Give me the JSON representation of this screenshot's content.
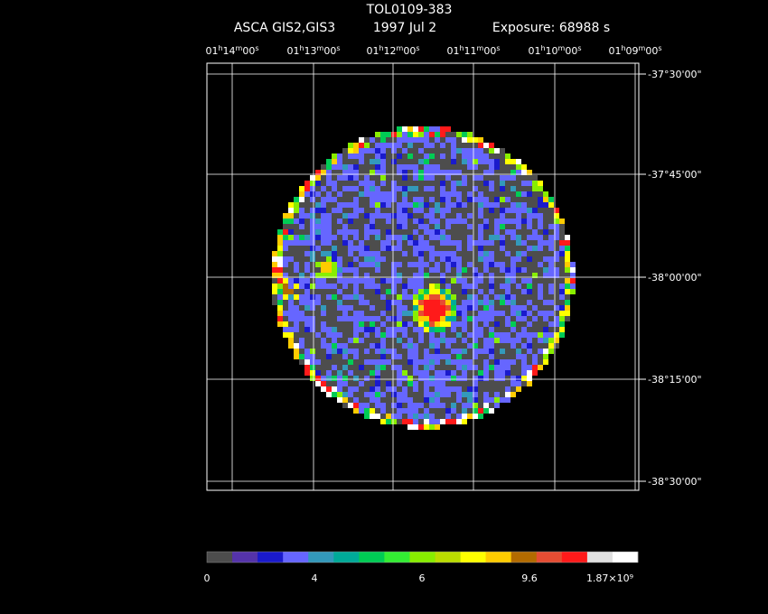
{
  "header": {
    "title": "TOL0109-383",
    "instrument": "ASCA GIS2,GIS3",
    "date": "1997 Jul  2",
    "exposure": "Exposure: 68988 s"
  },
  "ra_labels": [
    {
      "hours": "01",
      "h": "h",
      "minutes": "14",
      "m": "m",
      "seconds": "00",
      "s": "s"
    },
    {
      "hours": "01",
      "h": "h",
      "minutes": "13",
      "m": "m",
      "seconds": "00",
      "s": "s"
    },
    {
      "hours": "01",
      "h": "h",
      "minutes": "12",
      "m": "m",
      "seconds": "00",
      "s": "s"
    },
    {
      "hours": "01",
      "h": "h",
      "minutes": "11",
      "m": "m",
      "seconds": "00",
      "s": "s"
    },
    {
      "hours": "01",
      "h": "h",
      "minutes": "10",
      "m": "m",
      "seconds": "00",
      "s": "s"
    },
    {
      "hours": "01",
      "h": "h",
      "minutes": "09",
      "m": "m",
      "seconds": "00",
      "s": "s"
    }
  ],
  "dec_labels": [
    "-37°30'00\"",
    "-37°45'00\"",
    "-38°00'00\"",
    "-38°15'00\"",
    "-38°30'00\""
  ],
  "colorbar": {
    "colors": [
      "#4d4d4d",
      "#5533aa",
      "#1a1acc",
      "#6666ff",
      "#3399bb",
      "#00aa99",
      "#00cc55",
      "#33ee33",
      "#88ee00",
      "#bbdd00",
      "#ffff00",
      "#ffcc00",
      "#b36b00",
      "#e64d33",
      "#ff1a1a",
      "#e0e0e0",
      "#ffffff"
    ],
    "labels": [
      "0",
      "4",
      "6",
      "9.6",
      "1.87×10⁹"
    ]
  }
}
